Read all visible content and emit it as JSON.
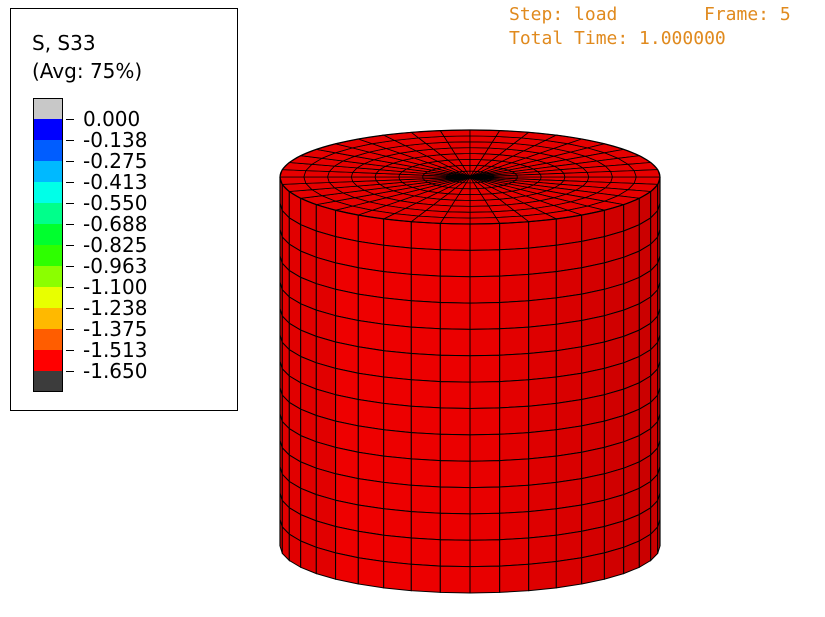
{
  "legend": {
    "variable": "S, S33",
    "averaging": "(Avg: 75%)",
    "levels": [
      {
        "label": "0.000",
        "color": "#c8c8c8"
      },
      {
        "label": "-0.138",
        "color": "#0000ff"
      },
      {
        "label": "-0.275",
        "color": "#005dff"
      },
      {
        "label": "-0.413",
        "color": "#00b9ff"
      },
      {
        "label": "-0.550",
        "color": "#00ffe8"
      },
      {
        "label": "-0.688",
        "color": "#00ff8b"
      },
      {
        "label": "-0.825",
        "color": "#00ff2e"
      },
      {
        "label": "-0.963",
        "color": "#2eff00"
      },
      {
        "label": "-1.100",
        "color": "#8bff00"
      },
      {
        "label": "-1.238",
        "color": "#e8ff00"
      },
      {
        "label": "-1.375",
        "color": "#ffb900"
      },
      {
        "label": "-1.513",
        "color": "#ff5d00"
      },
      {
        "label": "-1.650",
        "color": "#ff0000"
      }
    ],
    "underflow_color": "#3c3c3c"
  },
  "step_info": {
    "step_text": "Step: load",
    "frame_text": "Frame: 5",
    "time_text": "Total Time: 1.000000"
  },
  "model": {
    "shape": "cylinder",
    "mesh_color": "#ee0000",
    "edge_color": "#000000",
    "contour_level": "-1.513"
  }
}
